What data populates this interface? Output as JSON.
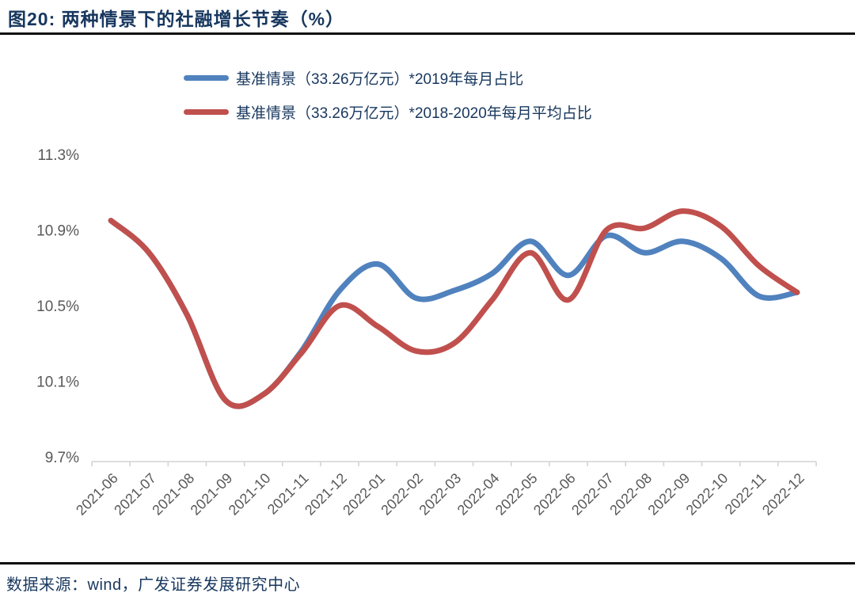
{
  "header": {
    "title": "图20:  两种情景下的社融增长节奏（%）"
  },
  "legend": {
    "position": "top",
    "items": [
      {
        "label": "基准情景（33.26万亿元）*2019年每月占比",
        "color": "#5082BE"
      },
      {
        "label": "基准情景（33.26万亿元）*2018-2020年每月平均占比",
        "color": "#C0504D"
      }
    ]
  },
  "chart_data": {
    "type": "line",
    "title": "两种情景下的社融增长节奏（%）",
    "xlabel": "",
    "ylabel": "",
    "categories": [
      "2021-06",
      "2021-07",
      "2021-08",
      "2021-09",
      "2021-10",
      "2021-11",
      "2021-12",
      "2022-01",
      "2022-02",
      "2022-03",
      "2022-04",
      "2022-05",
      "2022-06",
      "2022-07",
      "2022-08",
      "2022-09",
      "2022-10",
      "2022-11",
      "2022-12"
    ],
    "series": [
      {
        "name": "基准情景（33.26万亿元）*2019年每月占比",
        "color": "#5082BE",
        "values": [
          10.95,
          10.78,
          10.45,
          10.0,
          10.03,
          10.26,
          10.58,
          10.72,
          10.54,
          10.58,
          10.67,
          10.84,
          10.66,
          10.87,
          10.78,
          10.84,
          10.75,
          10.55,
          10.57
        ]
      },
      {
        "name": "基准情景（33.26万亿元）*2018-2020年每月平均占比",
        "color": "#C0504D",
        "values": [
          10.95,
          10.78,
          10.45,
          10.0,
          10.03,
          10.25,
          10.5,
          10.39,
          10.26,
          10.3,
          10.53,
          10.78,
          10.53,
          10.9,
          10.91,
          11.0,
          10.92,
          10.71,
          10.57
        ]
      }
    ],
    "ylim": [
      9.7,
      11.3
    ],
    "yticks": [
      11.3,
      10.9,
      10.5,
      10.1,
      9.7
    ],
    "ytick_labels": [
      "11.3%",
      "10.9%",
      "10.5%",
      "10.1%",
      "9.7%"
    ],
    "grid": false,
    "legend_position": "top"
  },
  "style": {
    "axis_color": "#D3D3D3",
    "tick_label_color": "#595959",
    "text_color": "#17375E",
    "rule_color": "#0D0D0D"
  },
  "footer": {
    "source": "数据来源：wind，广发证券发展研究中心"
  }
}
